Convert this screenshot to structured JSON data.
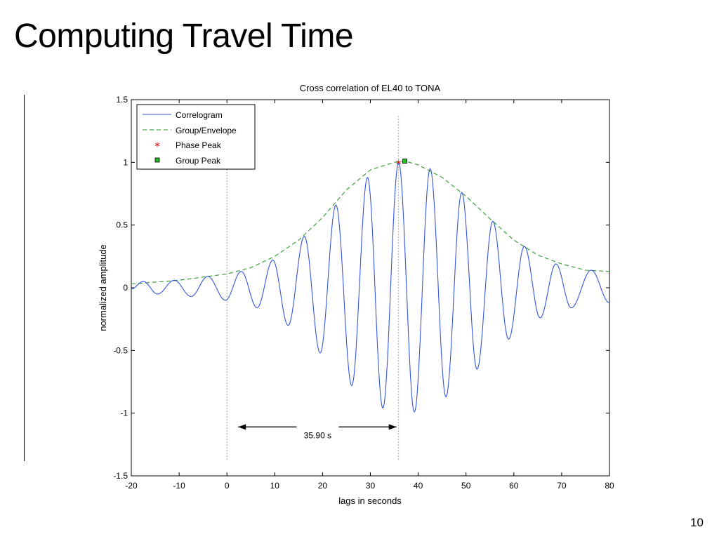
{
  "slide": {
    "title": "Computing Travel Time",
    "page_number": "10"
  },
  "chart_data": {
    "type": "line",
    "title": "Cross correlation of EL40 to TONA",
    "xlabel": "lags in seconds",
    "ylabel": "normalized amplitude",
    "xlim": [
      -20,
      80
    ],
    "ylim": [
      -1.5,
      1.5
    ],
    "x_ticks": [
      -20,
      -10,
      0,
      10,
      20,
      30,
      40,
      50,
      60,
      70,
      80
    ],
    "y_ticks": [
      -1.5,
      -1,
      -0.5,
      0,
      0.5,
      1,
      1.5
    ],
    "grid": false,
    "legend_position": "top-left",
    "series": [
      {
        "name": "Correlogram",
        "style": "solid",
        "color": "#3355dd",
        "carrier_period_s": 6.6,
        "extrema": [
          [
            -20.0,
            -0.01
          ],
          [
            -17.5,
            0.05
          ],
          [
            -14.5,
            -0.05
          ],
          [
            -11.0,
            0.06
          ],
          [
            -7.5,
            -0.07
          ],
          [
            -4.0,
            0.09
          ],
          [
            -0.3,
            -0.1
          ],
          [
            3.0,
            0.13
          ],
          [
            6.3,
            -0.16
          ],
          [
            9.6,
            0.22
          ],
          [
            12.8,
            -0.3
          ],
          [
            16.2,
            0.41
          ],
          [
            19.5,
            -0.52
          ],
          [
            22.8,
            0.66
          ],
          [
            26.1,
            -0.78
          ],
          [
            29.4,
            0.88
          ],
          [
            32.6,
            -0.96
          ],
          [
            35.9,
            1.0
          ],
          [
            39.2,
            -0.99
          ],
          [
            42.5,
            0.95
          ],
          [
            45.8,
            -0.87
          ],
          [
            49.1,
            0.76
          ],
          [
            52.3,
            -0.65
          ],
          [
            55.6,
            0.53
          ],
          [
            58.9,
            -0.41
          ],
          [
            62.2,
            0.33
          ],
          [
            65.5,
            -0.24
          ],
          [
            68.8,
            0.19
          ],
          [
            72.0,
            -0.16
          ],
          [
            76.2,
            0.14
          ],
          [
            80.0,
            -0.12
          ]
        ]
      },
      {
        "name": "Group/Envelope",
        "style": "dashed",
        "color": "#2a9a2a",
        "points": [
          [
            -20,
            0.03
          ],
          [
            -10,
            0.06
          ],
          [
            0,
            0.11
          ],
          [
            5,
            0.16
          ],
          [
            10,
            0.25
          ],
          [
            15,
            0.38
          ],
          [
            20,
            0.56
          ],
          [
            25,
            0.78
          ],
          [
            30,
            0.94
          ],
          [
            35,
            1.0
          ],
          [
            37.2,
            1.01
          ],
          [
            40,
            0.98
          ],
          [
            45,
            0.88
          ],
          [
            50,
            0.73
          ],
          [
            55,
            0.55
          ],
          [
            60,
            0.38
          ],
          [
            65,
            0.26
          ],
          [
            70,
            0.19
          ],
          [
            75,
            0.14
          ],
          [
            80,
            0.13
          ]
        ]
      },
      {
        "name": "Phase Peak",
        "style": "marker-asterisk",
        "color": "#e0201a",
        "points": [
          [
            35.9,
            1.0
          ]
        ]
      },
      {
        "name": "Group Peak",
        "style": "marker-square",
        "color": "#22bb22",
        "points": [
          [
            37.2,
            1.01
          ]
        ]
      }
    ],
    "vertical_reference_lines": [
      0,
      35.9
    ],
    "annotation": {
      "text": "35.90 s",
      "from_x": 0,
      "to_x": 35.9,
      "y": -1.11
    }
  }
}
